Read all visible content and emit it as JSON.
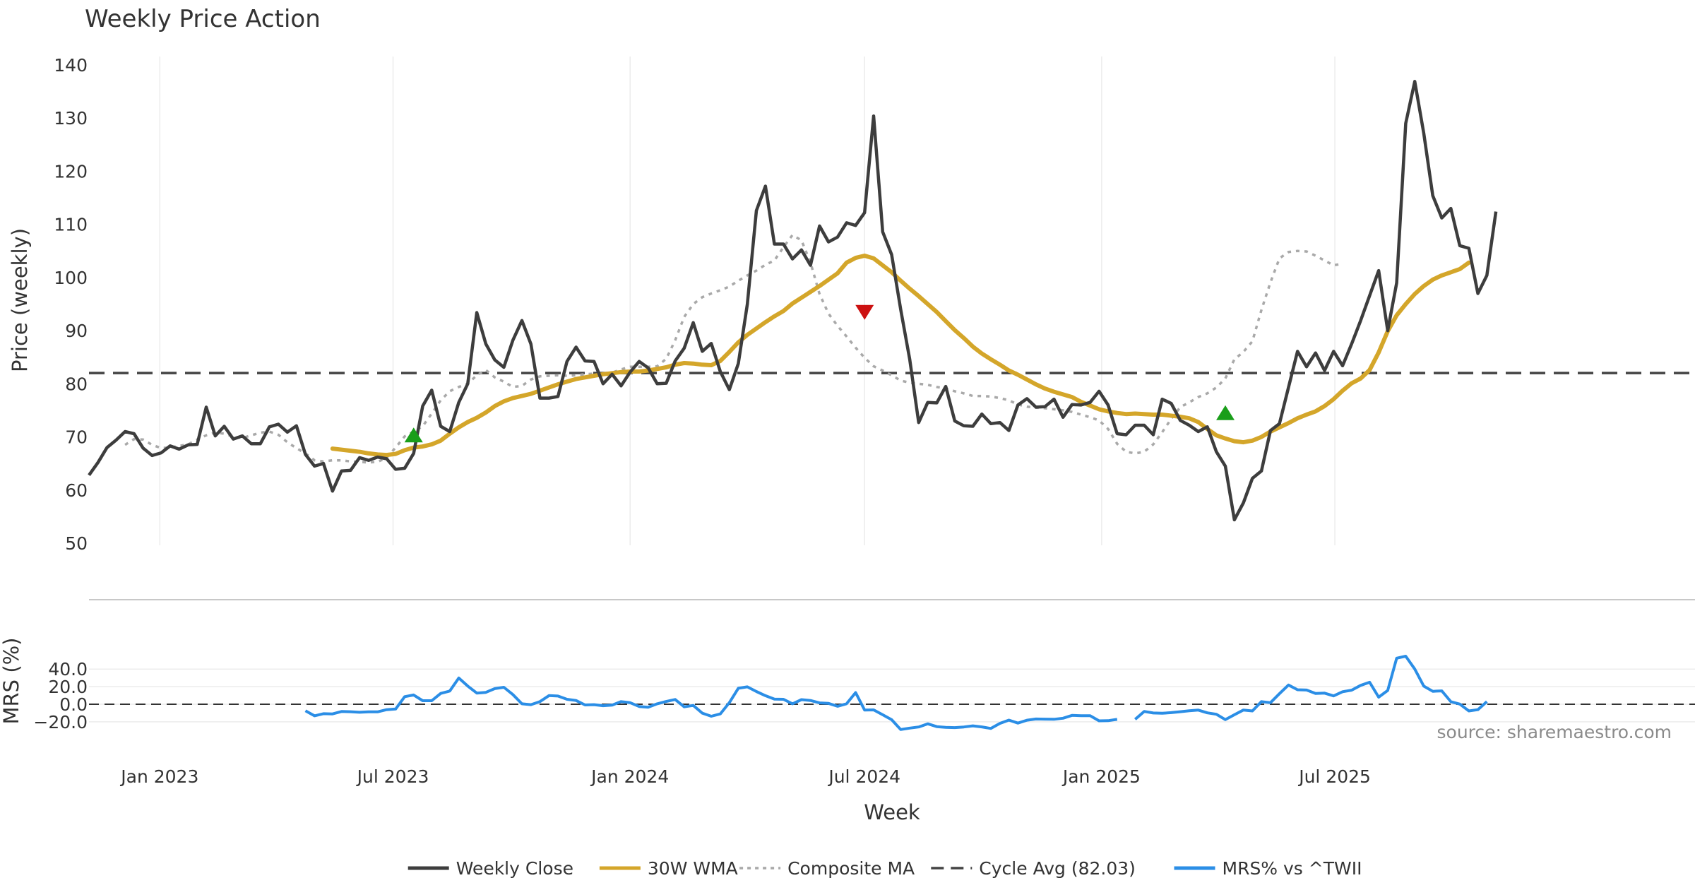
{
  "chart_data": {
    "type": "line",
    "title": "Weekly Price Action",
    "xlabel": "Week",
    "source": "source: sharemaestro.com",
    "x_start": "2022-11-07",
    "week_count": 152,
    "x_ticks": [
      {
        "label": "Jan 2023",
        "date": "2023-01-01"
      },
      {
        "label": "Jul 2023",
        "date": "2023-07-01"
      },
      {
        "label": "Jan 2024",
        "date": "2024-01-01"
      },
      {
        "label": "Jul 2024",
        "date": "2024-07-01"
      },
      {
        "label": "Jan 2025",
        "date": "2025-01-01"
      },
      {
        "label": "Jul 2025",
        "date": "2025-07-01"
      }
    ],
    "price_panel": {
      "ylabel": "Price (weekly)",
      "ylim": [
        50,
        140
      ],
      "yticks": [
        50,
        60,
        70,
        80,
        90,
        100,
        110,
        120,
        130,
        140
      ],
      "cycle_avg": 82.03,
      "close": [
        62.8,
        65.2,
        68.0,
        69.4,
        71.0,
        70.6,
        67.9,
        66.5,
        67.0,
        68.3,
        67.7,
        68.5,
        68.6,
        75.6,
        70.2,
        72.0,
        69.6,
        70.2,
        68.7,
        68.7,
        71.9,
        72.4,
        70.9,
        72.1,
        66.7,
        64.5,
        65.0,
        59.8,
        63.6,
        63.7,
        66.1,
        65.6,
        66.2,
        65.9,
        63.9,
        64.1,
        66.9,
        75.8,
        78.8,
        72.0,
        71.0,
        76.5,
        80.0,
        93.4,
        87.5,
        84.5,
        83.1,
        88.2,
        91.9,
        87.5,
        77.3,
        77.3,
        77.6,
        84.2,
        86.9,
        84.3,
        84.2,
        80.0,
        81.8,
        79.6,
        82.2,
        84.2,
        83.0,
        80.0,
        80.1,
        84.3,
        86.7,
        91.5,
        86.1,
        87.6,
        82.3,
        78.9,
        83.8,
        95.0,
        112.6,
        117.2,
        106.3,
        106.3,
        103.5,
        105.2,
        102.3,
        109.7,
        106.7,
        107.6,
        110.3,
        109.8,
        112.2,
        130.4,
        108.6,
        104.3,
        94.0,
        84.6,
        72.7,
        76.5,
        76.4,
        79.5,
        73.0,
        72.1,
        72.0,
        74.3,
        72.5,
        72.7,
        71.2,
        76.0,
        77.2,
        75.6,
        75.7,
        77.1,
        73.7,
        76.1,
        76.0,
        76.5,
        78.6,
        76.0,
        70.6,
        70.4,
        72.2,
        72.2,
        70.4,
        77.1,
        76.3,
        73.1,
        72.2,
        71.0,
        71.9,
        67.2,
        64.5,
        54.4,
        57.6,
        62.2,
        63.6,
        71.2,
        72.5,
        79.3,
        86.1,
        83.2,
        85.8,
        82.5,
        86.1,
        83.4,
        87.5,
        91.9,
        96.6,
        101.3,
        90.0,
        99.0,
        129.0,
        136.9,
        127.1,
        115.4,
        111.2,
        113.0,
        106.0,
        105.5,
        97.0,
        100.4,
        112.4
      ],
      "wma_start": 27,
      "wma": [
        67.8,
        67.6,
        67.4,
        67.2,
        66.9,
        66.7,
        66.6,
        66.8,
        67.5,
        68.0,
        68.2,
        68.6,
        69.3,
        70.6,
        71.8,
        72.8,
        73.6,
        74.6,
        75.8,
        76.7,
        77.3,
        77.7,
        78.1,
        78.7,
        79.3,
        79.9,
        80.4,
        80.9,
        81.2,
        81.5,
        81.8,
        82.0,
        82.2,
        82.3,
        82.3,
        82.5,
        82.8,
        83.1,
        83.6,
        83.9,
        83.8,
        83.6,
        83.5,
        84.3,
        86.0,
        87.8,
        89.2,
        90.4,
        91.6,
        92.7,
        93.7,
        95.1,
        96.2,
        97.3,
        98.4,
        99.6,
        100.8,
        102.8,
        103.7,
        104.1,
        103.6,
        102.3,
        101.0,
        99.4,
        97.9,
        96.5,
        95.0,
        93.5,
        91.8,
        90.1,
        88.6,
        87.0,
        85.7,
        84.6,
        83.6,
        82.5,
        81.7,
        80.8,
        79.9,
        79.1,
        78.5,
        78.0,
        77.5,
        76.6,
        75.9,
        75.2,
        74.8,
        74.5,
        74.3,
        74.4,
        74.3,
        74.2,
        74.2,
        74.0,
        73.8,
        73.5,
        72.8,
        71.5,
        70.3,
        69.7,
        69.2,
        69.0,
        69.3,
        70.0,
        71.0,
        71.8,
        72.6,
        73.5,
        74.2,
        74.8,
        75.8,
        77.1,
        78.7,
        80.1,
        81.0,
        82.6,
        85.9,
        89.9,
        92.9,
        95.0,
        96.9,
        98.4,
        99.6,
        100.4,
        101.0,
        101.6,
        102.8
      ],
      "comp_start": 4,
      "comp": [
        68.5,
        69.6,
        69.5,
        68.5,
        67.9,
        68.0,
        68.3,
        68.6,
        69.5,
        70.3,
        70.8,
        70.6,
        70.1,
        69.8,
        70.3,
        70.8,
        71.0,
        70.4,
        69.0,
        67.9,
        66.9,
        65.6,
        65.4,
        65.6,
        65.6,
        65.4,
        65.3,
        65.2,
        65.3,
        66.1,
        68.0,
        70.1,
        71.0,
        72.0,
        74.4,
        76.9,
        78.6,
        79.4,
        80.0,
        81.6,
        82.6,
        81.2,
        80.4,
        79.4,
        79.6,
        80.8,
        81.4,
        81.5,
        81.6,
        81.5,
        81.6,
        81.8,
        81.9,
        81.8,
        82.1,
        82.7,
        83.2,
        83.2,
        83.2,
        83.3,
        84.7,
        88.2,
        92.6,
        95.0,
        96.3,
        97.0,
        97.6,
        98.3,
        99.4,
        100.4,
        101.3,
        102.4,
        103.2,
        105.7,
        108.0,
        107.0,
        102.8,
        96.9,
        93.2,
        90.9,
        88.9,
        86.8,
        84.9,
        83.3,
        82.5,
        81.6,
        80.6,
        80.2,
        80.0,
        79.8,
        79.4,
        79.1,
        78.6,
        78.2,
        77.7,
        77.7,
        77.6,
        77.3,
        76.9,
        76.1,
        75.7,
        75.5,
        75.4,
        75.2,
        75.0,
        74.7,
        74.2,
        73.7,
        73.1,
        71.5,
        68.7,
        67.2,
        66.9,
        67.2,
        68.6,
        70.9,
        73.4,
        75.6,
        76.5,
        77.5,
        78.2,
        79.3,
        81.0,
        84.6,
        86.0,
        88.0,
        93.9,
        99.1,
        103.6,
        104.8,
        105.0,
        104.9,
        104.1,
        103.2,
        102.3,
        102.6
      ],
      "signals": [
        {
          "type": "buy",
          "week": 36,
          "value": 70.3
        },
        {
          "type": "sell",
          "week": 86,
          "value": 93.5
        },
        {
          "type": "buy",
          "week": 126,
          "value": 74.5
        }
      ]
    },
    "mrs_panel": {
      "ylabel": "MRS (%)",
      "ylim": [
        -28,
        50
      ],
      "yticks": [
        -20.0,
        0.0,
        20.0,
        40.0
      ],
      "ytick_labels": [
        "−20.0",
        "0.0",
        "20.0",
        "40.0"
      ],
      "start": 24,
      "values": [
        -7.5,
        -13.2,
        -10.8,
        -11.0,
        -8.3,
        -8.5,
        -9.2,
        -8.6,
        -8.7,
        -6.2,
        -5.5,
        8.6,
        10.5,
        4.0,
        4.0,
        12.3,
        15.0,
        29.8,
        20.7,
        12.7,
        13.5,
        17.8,
        19.3,
        11.0,
        0.5,
        -0.5,
        3.0,
        9.8,
        9.3,
        5.6,
        4.3,
        -0.8,
        -0.5,
        -1.7,
        -1.0,
        3.0,
        1.8,
        -2.6,
        -3.4,
        0.5,
        3.1,
        5.4,
        -3.0,
        -1.4,
        -10.1,
        -13.7,
        -11.0,
        1.8,
        18.2,
        19.8,
        14.5,
        9.7,
        5.8,
        5.6,
        0.5,
        5.2,
        4.3,
        1.5,
        1.0,
        -2.3,
        0.6,
        13.3,
        -6.6,
        -6.4,
        -12.0,
        -17.6,
        -28.8,
        -27.2,
        -25.9,
        -22.3,
        -25.5,
        -26.3,
        -26.6,
        -25.9,
        -24.6,
        -25.8,
        -27.6,
        -21.8,
        -18.1,
        -21.5,
        -18.2,
        -16.8,
        -17.0,
        -17.1,
        -15.9,
        -12.7,
        -13.0,
        -13.0,
        -18.9,
        -18.7,
        -17.2,
        null,
        -17.2,
        -8.2,
        -10.0,
        -10.3,
        -9.6,
        -8.5,
        -7.5,
        -6.7,
        -9.8,
        -11.4,
        -17.5,
        -12.0,
        -6.6,
        -7.6,
        3.0,
        1.8,
        12.0,
        21.9,
        16.5,
        16.2,
        12.3,
        12.6,
        9.5,
        14.2,
        16.0,
        21.5,
        25.0,
        8.0,
        15.7,
        52.4,
        54.7,
        40.0,
        20.6,
        14.7,
        15.2,
        2.9,
        0.2,
        -7.6,
        -6.2,
        3.0
      ]
    },
    "legend": [
      {
        "label": "Weekly Close",
        "color": "#3d3d3d",
        "style": "solid"
      },
      {
        "label": "30W WMA",
        "color": "#d4a62a",
        "style": "solid"
      },
      {
        "label": "Composite MA",
        "color": "#a9a9a9",
        "style": "dotted"
      },
      {
        "label": "Cycle Avg (82.03)",
        "color": "#444444",
        "style": "dashed"
      },
      {
        "label": "MRS% vs ^TWII",
        "color": "#2b8ee6",
        "style": "solid"
      }
    ]
  }
}
